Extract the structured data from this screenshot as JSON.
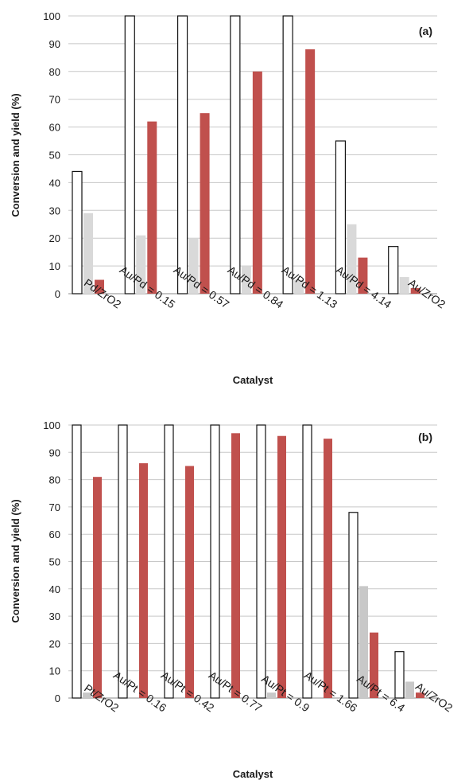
{
  "chart_data": [
    {
      "type": "bar",
      "panel_label": "(a)",
      "xlabel": "Catalyst",
      "ylabel": "Conversion and yield (%)",
      "ylim": [
        0,
        100
      ],
      "yticks": [
        "0",
        "10",
        "20",
        "30",
        "40",
        "50",
        "60",
        "70",
        "80",
        "90",
        "100"
      ],
      "grid": true,
      "categories": [
        "Pd/ZrO2",
        "Au/Pd = 0.15",
        "Au/Pd = 0.57",
        "Au/Pd = 0.84",
        "Au/Pd = 1.13",
        "Au/Pd = 4.14",
        "Au/ZrO2"
      ],
      "series": [
        {
          "values": [
            44,
            100,
            100,
            100,
            100,
            55,
            17
          ],
          "color": "#ffffff",
          "stroke": "#111111"
        },
        {
          "values": [
            29,
            21,
            20,
            10,
            5,
            25,
            6
          ],
          "color": "#d9d9d9"
        },
        {
          "values": [
            5,
            62,
            65,
            80,
            88,
            13,
            2
          ],
          "color": "#c0504d"
        }
      ]
    },
    {
      "type": "bar",
      "panel_label": "(b)",
      "xlabel": "Catalyst",
      "ylabel": "Conversion and yield (%)",
      "ylim": [
        0,
        100
      ],
      "yticks": [
        "0",
        "10",
        "20",
        "30",
        "40",
        "50",
        "60",
        "70",
        "80",
        "90",
        "100"
      ],
      "grid": true,
      "categories": [
        "Pt/ZrO2",
        "Au/Pt = 0.16",
        "Au/Pt = 0.42",
        "Au/Pt = 0.77",
        "Au/Pt = 0.9",
        "Au/Pt = 1.66",
        "Au/Pt = 6.4",
        "Au/ZrO2"
      ],
      "series": [
        {
          "values": [
            100,
            100,
            100,
            100,
            100,
            100,
            68,
            17
          ],
          "color": "#ffffff",
          "stroke": "#111111"
        },
        {
          "values": [
            2,
            0,
            0,
            0,
            2,
            0,
            41,
            6
          ],
          "color": "#c8c8c8"
        },
        {
          "values": [
            81,
            86,
            85,
            97,
            96,
            95,
            24,
            2
          ],
          "color": "#c0504d"
        }
      ]
    }
  ]
}
